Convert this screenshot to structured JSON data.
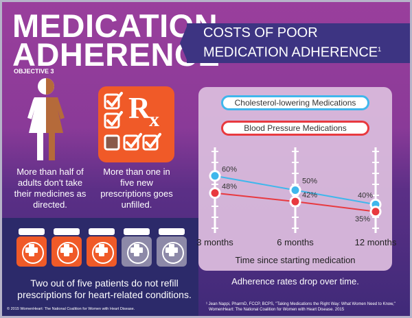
{
  "header": {
    "title_line1": "MEDICATION",
    "title_line2": "ADHERENCE",
    "objective": "OBJECTIVE 3",
    "banner_line1": "COSTS OF POOR",
    "banner_line2": "MEDICATION ADHERENCE",
    "banner_sup": "1"
  },
  "stats": {
    "women": "More than half of adults don't take their medicines as directed.",
    "rx": "More than one in five new prescriptions goes unfilled.",
    "rx_letter": "R",
    "rx_subletter": "x",
    "bottles": "Two out of five patients do not refill prescriptions for heart-related conditions."
  },
  "icons": {
    "person": "woman-icon",
    "rx": "prescription-icon",
    "bottle": "pill-bottle-icon",
    "checks": [
      "check-icon",
      "check-icon",
      "check-icon",
      "check-icon",
      "empty-box-icon",
      "check-icon",
      "check-icon"
    ]
  },
  "bottles": [
    {
      "filled": true
    },
    {
      "filled": true
    },
    {
      "filled": true
    },
    {
      "filled": false
    },
    {
      "filled": false
    }
  ],
  "colors": {
    "blue": "#3fb7ec",
    "red": "#e8393f",
    "orange": "#f05a28",
    "woman_tan": "#b56a3a",
    "grey_bottle": "#8d89a8"
  },
  "chart_data": {
    "type": "line",
    "categories": [
      "3 months",
      "6 months",
      "12 months"
    ],
    "series": [
      {
        "name": "Cholesterol-lowering Medications",
        "values": [
          60,
          50,
          40
        ],
        "labels": [
          "60%",
          "50%",
          "40%"
        ]
      },
      {
        "name": "Blood Pressure Medications",
        "values": [
          48,
          42,
          35
        ],
        "labels": [
          "48%",
          "42%",
          "35%"
        ]
      }
    ],
    "xlabel": "Time since starting medication",
    "ylabel": "",
    "ylim": [
      20,
      80
    ],
    "grid": false,
    "legend": "top"
  },
  "chart_caption": "Adherence rates drop over time.",
  "footer": {
    "copyright": "© 2015 WomenHeart: The National Coalition for Women with Heart Disease.",
    "ref1": "¹ Jean Nappi, PharmD, FCCP, BCPS, \"Taking Medications the Right Way: What Women Need to  Know,\"",
    "ref2": "WomenHeart: The National Coalition for Women with Heart Disease. 2015"
  }
}
